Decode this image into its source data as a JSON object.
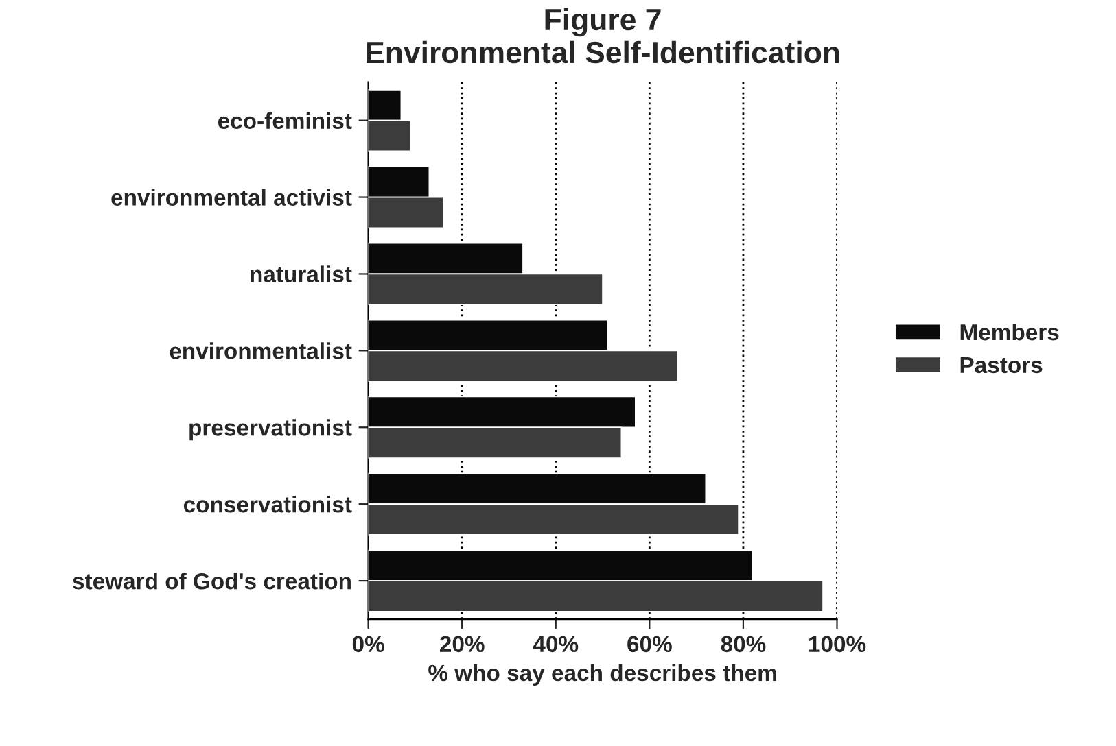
{
  "chart_data": {
    "type": "bar",
    "orientation": "horizontal",
    "title": "Figure 7\nEnvironmental Self-Identification",
    "xlabel": "% who say each describes them",
    "categories": [
      "eco-feminist",
      "environmental activist",
      "naturalist",
      "environmentalist",
      "preservationist",
      "conservationist",
      "steward of God's creation"
    ],
    "series": [
      {
        "name": "Members",
        "color": "#0a0a0a",
        "values": [
          7,
          13,
          33,
          51,
          57,
          72,
          82
        ]
      },
      {
        "name": "Pastors",
        "color": "#3c3c3c",
        "values": [
          9,
          16,
          50,
          66,
          54,
          79,
          97
        ]
      }
    ],
    "xlim": [
      0,
      100
    ],
    "xticks": [
      {
        "value": 0,
        "label": "0%"
      },
      {
        "value": 20,
        "label": "20%"
      },
      {
        "value": 40,
        "label": "40%"
      },
      {
        "value": 60,
        "label": "60%"
      },
      {
        "value": 80,
        "label": "80%"
      },
      {
        "value": 100,
        "label": "100%"
      }
    ],
    "grid": "x",
    "legend": "right"
  }
}
